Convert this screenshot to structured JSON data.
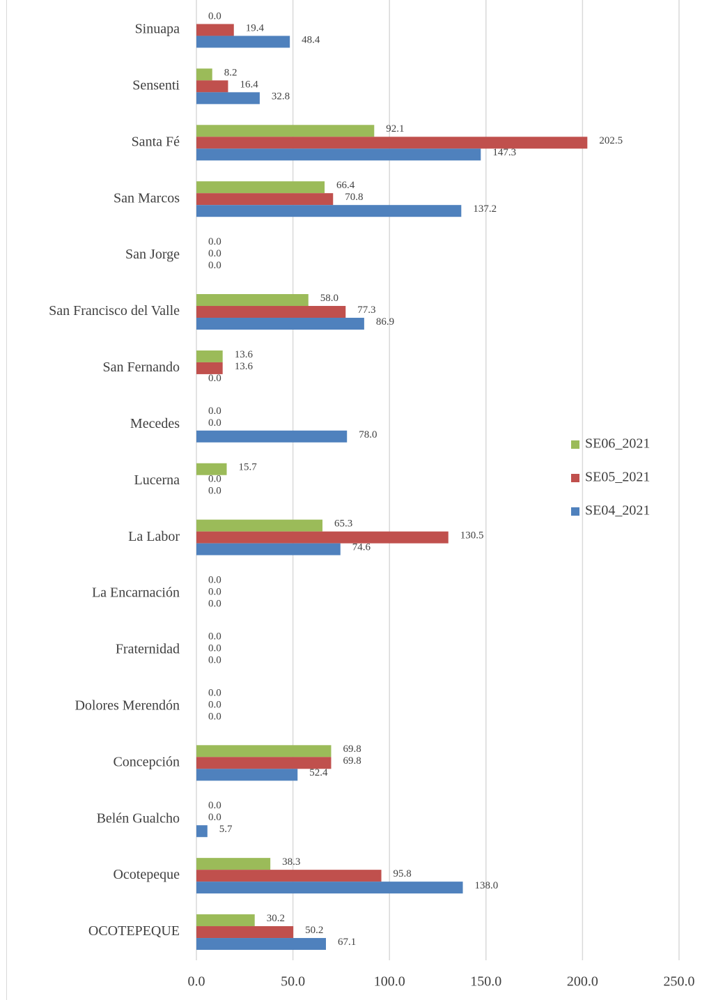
{
  "chart_data": {
    "type": "bar",
    "orientation": "horizontal",
    "categories": [
      "Sinuapa",
      "Sensenti",
      "Santa Fé",
      "San Marcos",
      "San Jorge",
      "San Francisco del Valle",
      "San Fernando",
      "Mecedes",
      "Lucerna",
      "La Labor",
      "La Encarnación",
      "Fraternidad",
      "Dolores Merendón",
      "Concepción",
      "Belén Gualcho",
      "Ocotepeque",
      "OCOTEPEQUE"
    ],
    "series": [
      {
        "name": "SE06_2021",
        "color": "#9bbb59",
        "values": [
          0.0,
          8.2,
          92.1,
          66.4,
          0.0,
          58.0,
          13.6,
          0.0,
          15.7,
          65.3,
          0.0,
          0.0,
          0.0,
          69.8,
          0.0,
          38.3,
          30.2
        ],
        "value_labels": [
          "0.0",
          "8.2",
          "92.1",
          "66.4",
          "0.0",
          "58.0",
          "13.6",
          "0.0",
          "15.7",
          "65.3",
          "0.0",
          "0.0",
          "0.0",
          "69.8",
          "0.0",
          "38.3",
          "30.2"
        ]
      },
      {
        "name": "SE05_2021",
        "color": "#c0504d",
        "values": [
          19.4,
          16.4,
          202.5,
          70.8,
          0.0,
          77.3,
          13.6,
          0.0,
          0.0,
          130.5,
          0.0,
          0.0,
          0.0,
          69.8,
          0.0,
          95.8,
          50.2
        ],
        "value_labels": [
          "19.4",
          "16.4",
          "202.5",
          "70.8",
          "0.0",
          "77.3",
          "13.6",
          "0.0",
          "0.0",
          "130.5",
          "0.0",
          "0.0",
          "0.0",
          "69.8",
          "0.0",
          "95.8",
          "50.2"
        ]
      },
      {
        "name": "SE04_2021",
        "color": "#4f81bd",
        "values": [
          48.4,
          32.8,
          147.3,
          137.2,
          0.0,
          86.9,
          0.0,
          78.0,
          0.0,
          74.6,
          0.0,
          0.0,
          0.0,
          52.4,
          5.7,
          138.0,
          67.1
        ],
        "value_labels": [
          "48.4",
          "32.8",
          "147.3",
          "137.2",
          "0.0",
          "86.9",
          "0.0",
          "78.0",
          "0.0",
          "74.6",
          "0.0",
          "0.0",
          "0.0",
          "52.4",
          "5.7",
          "138.0",
          "67.1"
        ]
      }
    ],
    "xlim": [
      0,
      250
    ],
    "xticks": [
      {
        "value": 0,
        "label": "0.0"
      },
      {
        "value": 50,
        "label": "50.0"
      },
      {
        "value": 100,
        "label": "100.0"
      },
      {
        "value": 150,
        "label": "150.0"
      },
      {
        "value": 200,
        "label": "200.0"
      },
      {
        "value": 250,
        "label": "250.0"
      }
    ],
    "grid": true,
    "legend": "right"
  }
}
